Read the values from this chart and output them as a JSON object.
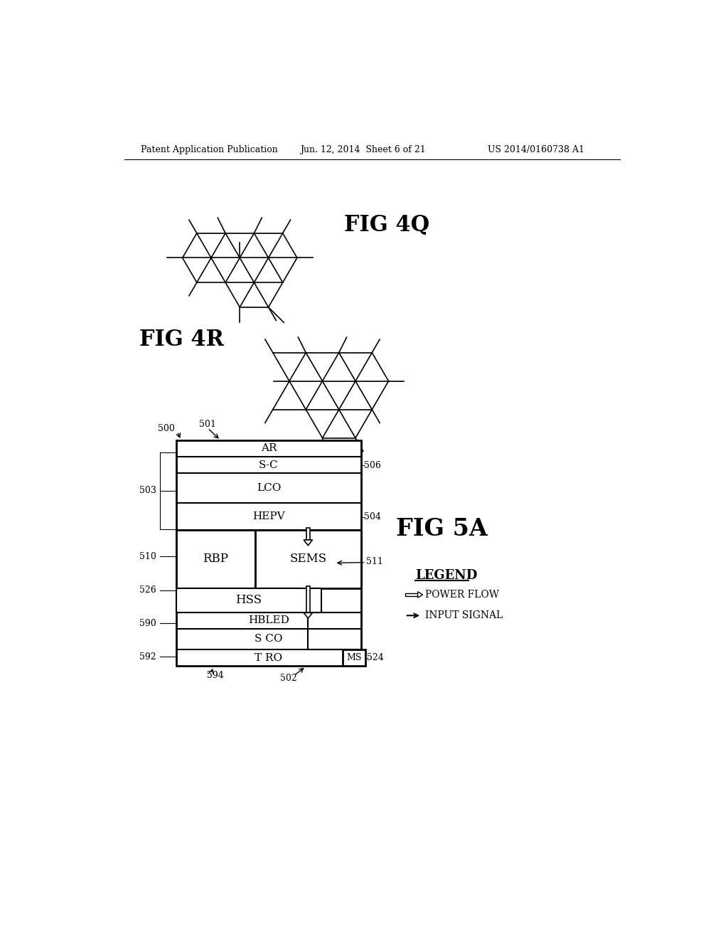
{
  "bg_color": "#ffffff",
  "header_left": "Patent Application Publication",
  "header_mid": "Jun. 12, 2014  Sheet 6 of 21",
  "header_right": "US 2014/0160738 A1",
  "fig4q_label": "FIG 4Q",
  "fig4r_label": "FIG 4R",
  "fig5a_label": "FIG 5A",
  "legend_title": "LEGEND",
  "legend_power": "POWER FLOW",
  "legend_input": "INPUT SIGNAL",
  "label_500": "500",
  "label_501": "501",
  "label_502": "502",
  "label_503": "503",
  "label_504": "504",
  "label_506": "506",
  "label_510": "510",
  "label_511": "511",
  "label_524": "524",
  "label_526": "526",
  "label_590": "590",
  "label_592": "592",
  "label_594": "594",
  "label_rbp": "RBP",
  "label_sems": "SEMS",
  "label_hss": "HSS",
  "label_ms": "MS"
}
